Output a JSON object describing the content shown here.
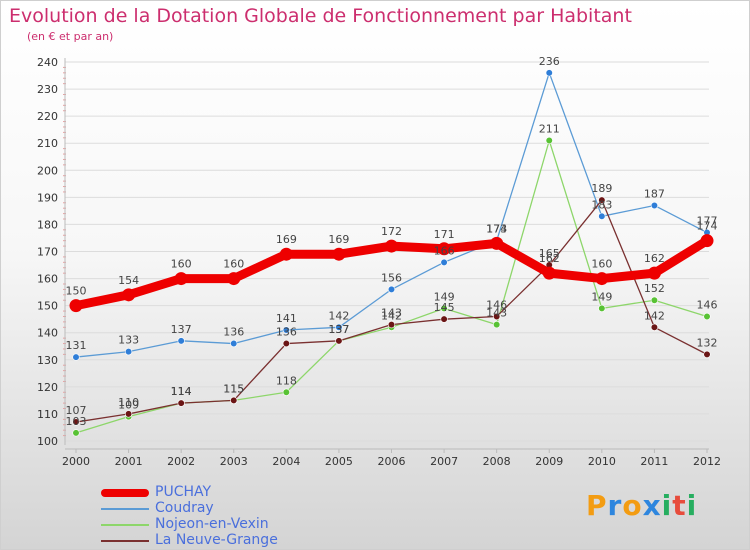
{
  "title": "Evolution de la Dotation Globale de Fonctionnement par Habitant",
  "subtitle": "(en € et par an)",
  "logo": {
    "text": "Proxiti",
    "letters": [
      "P",
      "r",
      "o",
      "x",
      "i",
      "t",
      "i"
    ],
    "colors": [
      "#f39c12",
      "#2e86de",
      "#f39c12",
      "#2e86de",
      "#27ae60",
      "#e74c3c",
      "#27ae60"
    ]
  },
  "chart_data": {
    "type": "line",
    "title": "Evolution de la Dotation Globale de Fonctionnement par Habitant",
    "subtitle": "(en € et par an)",
    "x": [
      "2000",
      "2001",
      "2002",
      "2003",
      "2004",
      "2005",
      "2006",
      "2007",
      "2008",
      "2009",
      "2010",
      "2011",
      "2012"
    ],
    "ylim": [
      100,
      240
    ],
    "yticks": [
      100,
      110,
      120,
      130,
      140,
      150,
      160,
      170,
      180,
      190,
      200,
      210,
      220,
      230,
      240
    ],
    "grid": "horizontal",
    "legend_position": "bottom-left",
    "series": [
      {
        "name": "PUCHAY",
        "color": "#ee0000",
        "emphasis": true,
        "values": [
          150,
          154,
          160,
          160,
          169,
          169,
          172,
          171,
          173,
          162,
          160,
          162,
          174
        ]
      },
      {
        "name": "Coudray",
        "color": "#5b9bd5",
        "marker": "#2f7ed8",
        "values": [
          131,
          133,
          137,
          136,
          141,
          142,
          156,
          166,
          174,
          236,
          183,
          187,
          177
        ]
      },
      {
        "name": "Nojeon-en-Vexin",
        "color": "#8dd66a",
        "marker": "#58c234",
        "values": [
          103,
          109,
          114,
          115,
          118,
          137,
          142,
          149,
          143,
          211,
          149,
          152,
          146
        ]
      },
      {
        "name": "La Neuve-Grange",
        "color": "#7a3030",
        "marker": "#6b1515",
        "values": [
          107,
          110,
          114,
          115,
          136,
          137,
          143,
          145,
          146,
          165,
          189,
          142,
          132
        ]
      }
    ]
  }
}
